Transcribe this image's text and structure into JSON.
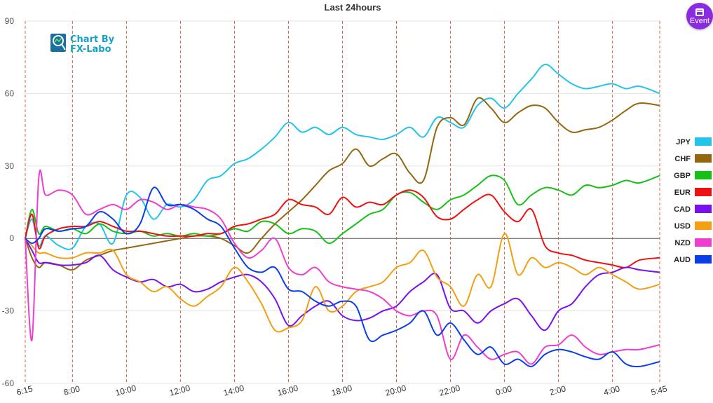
{
  "event_button": {
    "label": "Event",
    "icon": "calendar-icon"
  },
  "logo": {
    "line1": "Chart By",
    "line2": "FX-Labo",
    "icon": "chart-logo-icon"
  },
  "colors": {
    "JPY": "#22c4ec",
    "CHF": "#93670f",
    "GBP": "#16c116",
    "EUR": "#ee1111",
    "CAD": "#7711ee",
    "USD": "#f29f11",
    "NZD": "#ee3ed0",
    "AUD": "#0a3ee8"
  },
  "chart_data": {
    "type": "line",
    "title": "Last 24hours",
    "xlabel": "",
    "ylabel": "",
    "ylim": [
      -60,
      90
    ],
    "yticks": [
      "90",
      "60",
      "30",
      "0",
      "-30",
      "-60"
    ],
    "xlim": [
      6.25,
      29.75
    ],
    "xtick_labels": [
      "6:15",
      "8:00",
      "10:00",
      "12:00",
      "14:00",
      "16:00",
      "18:00",
      "20:00",
      "22:00",
      "0:00",
      "2:00",
      "4:00",
      "5:45"
    ],
    "xtick_hours": [
      6.25,
      8,
      10,
      12,
      14,
      16,
      18,
      20,
      22,
      24,
      26,
      28,
      29.75
    ],
    "grid": true,
    "legend_position": "right",
    "series": [
      {
        "name": "JPY",
        "x": [
          6.25,
          6.5,
          6.75,
          7,
          7.5,
          8,
          8.5,
          9,
          9.5,
          10,
          10.5,
          11,
          11.5,
          12,
          12.5,
          13,
          13.5,
          14,
          14.5,
          15,
          15.5,
          16,
          16.5,
          17,
          17.5,
          18,
          18.5,
          19,
          19.5,
          20,
          20.5,
          21,
          21.5,
          22,
          22.5,
          23,
          23.5,
          24,
          24.5,
          25,
          25.5,
          26,
          26.5,
          27,
          27.5,
          28,
          28.5,
          29,
          29.75
        ],
        "y": [
          0,
          8,
          -3,
          1,
          -3,
          -4,
          5,
          6,
          -2,
          18,
          17,
          8,
          14,
          13,
          16,
          24,
          26,
          31,
          33,
          37,
          42,
          48,
          44,
          46,
          43,
          46,
          43,
          42,
          41,
          43,
          46,
          42,
          50,
          48,
          46,
          55,
          58,
          54,
          60,
          66,
          72,
          68,
          64,
          62,
          63,
          64,
          62,
          63,
          60
        ]
      },
      {
        "name": "CHF",
        "x": [
          6.25,
          6.5,
          6.75,
          7,
          7.5,
          8,
          8.5,
          9,
          9.5,
          10,
          10.5,
          11,
          11.5,
          12,
          12.5,
          13,
          13.5,
          14,
          14.5,
          15,
          15.5,
          16,
          16.5,
          17,
          17.5,
          18,
          18.5,
          19,
          19.5,
          20,
          20.5,
          21,
          21.5,
          22,
          22.5,
          23,
          23.5,
          24,
          24.5,
          25,
          25.5,
          26,
          26.5,
          27,
          27.5,
          28,
          28.5,
          29,
          29.75
        ],
        "y": [
          0,
          -8,
          -12,
          -10,
          -11,
          -13,
          -9,
          -7,
          -5,
          -4,
          -3,
          -2,
          -1,
          0,
          1,
          1,
          0,
          -3,
          -6,
          0,
          6,
          11,
          16,
          22,
          28,
          31,
          37,
          30,
          33,
          35,
          27,
          24,
          46,
          50,
          47,
          58,
          54,
          48,
          52,
          55,
          54,
          48,
          44,
          45,
          46,
          49,
          53,
          56,
          55
        ]
      },
      {
        "name": "GBP",
        "x": [
          6.25,
          6.5,
          6.75,
          7,
          7.5,
          8,
          8.5,
          9,
          9.5,
          10,
          10.5,
          11,
          11.5,
          12,
          12.5,
          13,
          13.5,
          14,
          14.5,
          15,
          15.5,
          16,
          16.5,
          17,
          17.5,
          18,
          18.5,
          19,
          19.5,
          20,
          20.5,
          21,
          21.5,
          22,
          22.5,
          23,
          23.5,
          24,
          24.5,
          25,
          25.5,
          26,
          26.5,
          27,
          27.5,
          28,
          28.5,
          29,
          29.75
        ],
        "y": [
          0,
          12,
          2,
          5,
          3,
          4,
          2,
          6,
          3,
          2,
          3,
          1,
          2,
          1,
          2,
          1,
          2,
          4,
          3,
          7,
          6,
          2,
          4,
          3,
          -2,
          2,
          6,
          10,
          12,
          18,
          19,
          15,
          12,
          16,
          18,
          22,
          26,
          24,
          14,
          18,
          21,
          20,
          18,
          22,
          21,
          22,
          24,
          23,
          26
        ]
      },
      {
        "name": "EUR",
        "x": [
          6.25,
          6.5,
          6.75,
          7,
          7.5,
          8,
          8.5,
          9,
          9.5,
          10,
          10.5,
          11,
          11.5,
          12,
          12.5,
          13,
          13.5,
          14,
          14.5,
          15,
          15.5,
          16,
          16.5,
          17,
          17.5,
          18,
          18.5,
          19,
          19.5,
          20,
          20.5,
          21,
          21.5,
          22,
          22.5,
          23,
          23.5,
          24,
          24.5,
          25,
          25.5,
          26,
          26.5,
          27,
          27.5,
          28,
          28.5,
          29,
          29.75
        ],
        "y": [
          0,
          10,
          -4,
          1,
          4,
          5,
          5,
          7,
          5,
          3,
          3,
          2,
          1,
          1,
          1,
          2,
          2,
          5,
          6,
          8,
          10,
          16,
          14,
          13,
          10,
          17,
          13,
          15,
          14,
          18,
          20,
          17,
          9,
          8,
          12,
          16,
          18,
          11,
          7,
          12,
          -3,
          -6,
          -7,
          -9,
          -10,
          -11,
          -12,
          -9,
          -8
        ]
      },
      {
        "name": "CAD",
        "x": [
          6.25,
          6.5,
          6.75,
          7,
          7.5,
          8,
          8.5,
          9,
          9.5,
          10,
          10.5,
          11,
          11.5,
          12,
          12.5,
          13,
          13.5,
          14,
          14.5,
          15,
          15.5,
          16,
          16.5,
          17,
          17.5,
          18,
          18.5,
          19,
          19.5,
          20,
          20.5,
          21,
          21.5,
          22,
          22.5,
          23,
          23.5,
          24,
          24.5,
          25,
          25.5,
          26,
          26.5,
          27,
          27.5,
          28,
          28.5,
          29,
          29.75
        ],
        "y": [
          0,
          -5,
          -10,
          -10,
          -11,
          -11,
          -10,
          -7,
          -13,
          -16,
          -18,
          -17,
          -20,
          -19,
          -22,
          -21,
          -18,
          -16,
          -15,
          -18,
          -25,
          -36,
          -32,
          -28,
          -26,
          -32,
          -34,
          -33,
          -30,
          -28,
          -22,
          -18,
          -15,
          -29,
          -30,
          -35,
          -30,
          -27,
          -25,
          -32,
          -38,
          -30,
          -27,
          -20,
          -15,
          -14,
          -12,
          -13,
          -14
        ]
      },
      {
        "name": "USD",
        "x": [
          6.25,
          6.5,
          6.75,
          7,
          7.5,
          8,
          8.5,
          9,
          9.5,
          10,
          10.5,
          11,
          11.5,
          12,
          12.5,
          13,
          13.5,
          14,
          14.5,
          15,
          15.5,
          16,
          16.5,
          17,
          17.5,
          18,
          18.5,
          19,
          19.5,
          20,
          20.5,
          21,
          21.5,
          22,
          22.5,
          23,
          23.5,
          24,
          24.5,
          25,
          25.5,
          26,
          26.5,
          27,
          27.5,
          28,
          28.5,
          29,
          29.75
        ],
        "y": [
          0,
          -3,
          -6,
          -6,
          -8,
          -8,
          -6,
          -6,
          -5,
          -15,
          -18,
          -22,
          -20,
          -25,
          -28,
          -24,
          -20,
          -12,
          -18,
          -27,
          -38,
          -37,
          -34,
          -20,
          -30,
          -28,
          -22,
          -20,
          -18,
          -12,
          -10,
          -5,
          -16,
          -20,
          -28,
          -15,
          -20,
          2,
          -15,
          -8,
          -12,
          -10,
          -12,
          -15,
          -12,
          -15,
          -18,
          -21,
          -19
        ]
      },
      {
        "name": "NZD",
        "x": [
          6.25,
          6.5,
          6.75,
          7,
          7.5,
          8,
          8.5,
          9,
          9.5,
          10,
          10.5,
          11,
          11.5,
          12,
          12.5,
          13,
          13.5,
          14,
          14.5,
          15,
          15.5,
          16,
          16.5,
          17,
          17.5,
          18,
          18.5,
          19,
          19.5,
          20,
          20.5,
          21,
          21.5,
          22,
          22.5,
          23,
          23.5,
          24,
          24.5,
          25,
          25.5,
          26,
          26.5,
          27,
          27.5,
          28,
          28.5,
          29,
          29.75
        ],
        "y": [
          0,
          -42,
          25,
          18,
          20,
          18,
          10,
          12,
          14,
          12,
          16,
          15,
          12,
          14,
          13,
          12,
          8,
          -2,
          -8,
          -5,
          0,
          -12,
          -15,
          -12,
          -18,
          -20,
          -21,
          -22,
          -25,
          -30,
          -32,
          -30,
          -32,
          -50,
          -40,
          -45,
          -50,
          -48,
          -47,
          -52,
          -45,
          -44,
          -40,
          -45,
          -48,
          -47,
          -46,
          -46,
          -44
        ]
      },
      {
        "name": "AUD",
        "x": [
          6.25,
          6.5,
          6.75,
          7,
          7.5,
          8,
          8.5,
          9,
          9.5,
          10,
          10.5,
          11,
          11.5,
          12,
          12.5,
          13,
          13.5,
          14,
          14.5,
          15,
          15.5,
          16,
          16.5,
          17,
          17.5,
          18,
          18.5,
          19,
          19.5,
          20,
          20.5,
          21,
          21.5,
          22,
          22.5,
          23,
          23.5,
          24,
          24.5,
          25,
          25.5,
          26,
          26.5,
          27,
          27.5,
          28,
          28.5,
          29,
          29.75
        ],
        "y": [
          0,
          -2,
          0,
          4,
          3,
          4,
          5,
          11,
          8,
          2,
          6,
          21,
          14,
          14,
          12,
          8,
          5,
          -4,
          -12,
          -14,
          -12,
          -21,
          -22,
          -26,
          -28,
          -26,
          -28,
          -42,
          -40,
          -38,
          -35,
          -30,
          -40,
          -35,
          -42,
          -48,
          -45,
          -52,
          -50,
          -53,
          -48,
          -46,
          -47,
          -49,
          -50,
          -47,
          -52,
          -53,
          -51
        ]
      }
    ]
  }
}
